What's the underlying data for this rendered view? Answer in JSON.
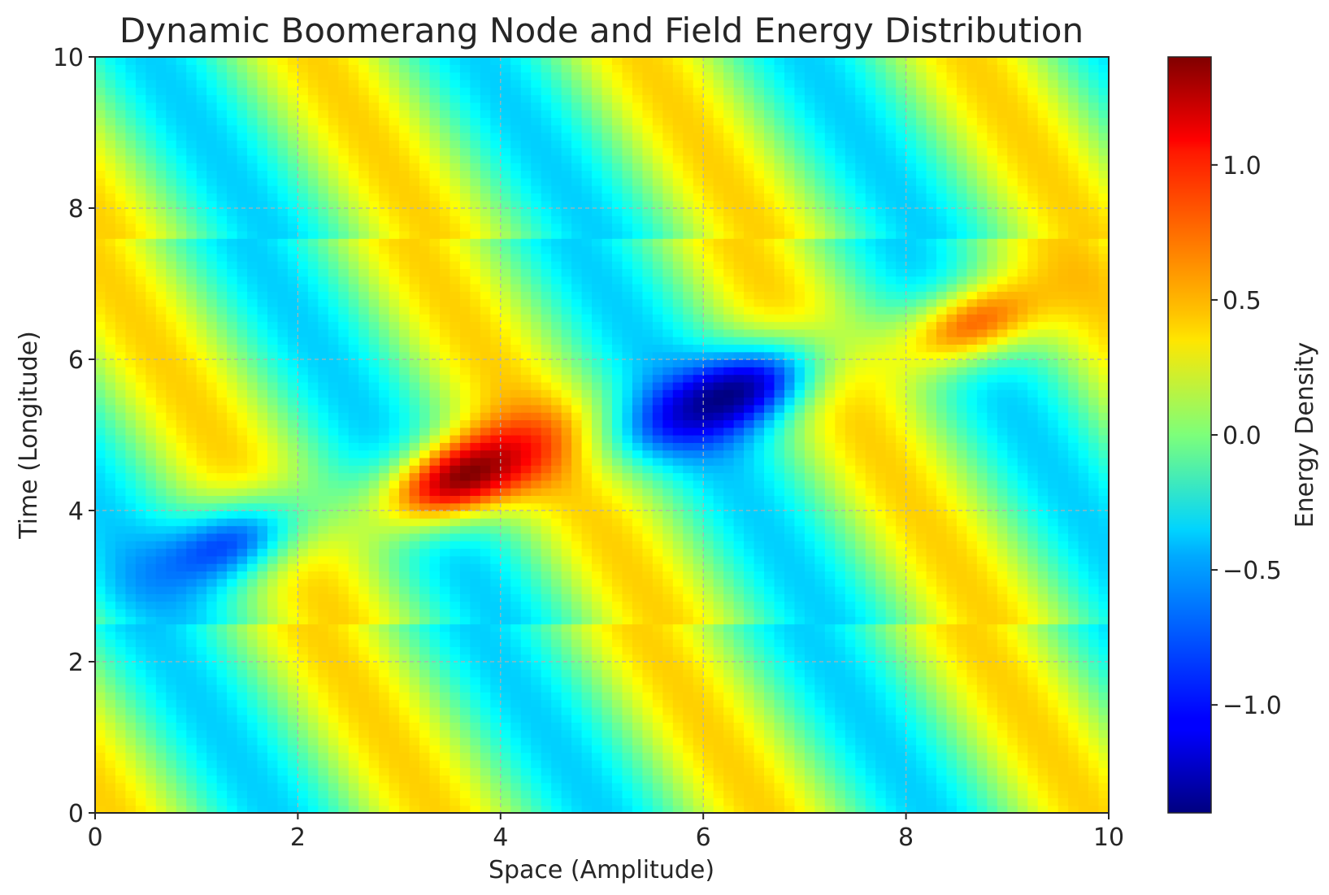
{
  "chart_data": {
    "type": "heatmap",
    "title": "Dynamic Boomerang Node and Field Energy Distribution",
    "xlabel": "Space (Amplitude)",
    "ylabel": "Time (Longitude)",
    "xlim": [
      0,
      10
    ],
    "ylim": [
      0,
      10
    ],
    "x_ticks": [
      "0",
      "2",
      "4",
      "6",
      "8",
      "10"
    ],
    "y_ticks": [
      "0",
      "2",
      "4",
      "6",
      "8",
      "10"
    ],
    "grid": true,
    "colormap": "jet",
    "colorbar": {
      "label": "Energy Density",
      "range": [
        -1.4,
        1.4
      ],
      "ticks": [
        "1.0",
        "0.5",
        "0.0",
        "−0.5",
        "−1.0"
      ],
      "tick_values": [
        1.0,
        0.5,
        0.0,
        -0.5,
        -1.0
      ]
    },
    "features": [
      {
        "x": 3.7,
        "y": 4.5,
        "value": 1.4
      },
      {
        "x": 6.2,
        "y": 5.5,
        "value": -1.4
      },
      {
        "x": 8.7,
        "y": 6.5,
        "value": 0.75
      },
      {
        "x": 1.2,
        "y": 3.5,
        "value": -0.85
      }
    ]
  }
}
